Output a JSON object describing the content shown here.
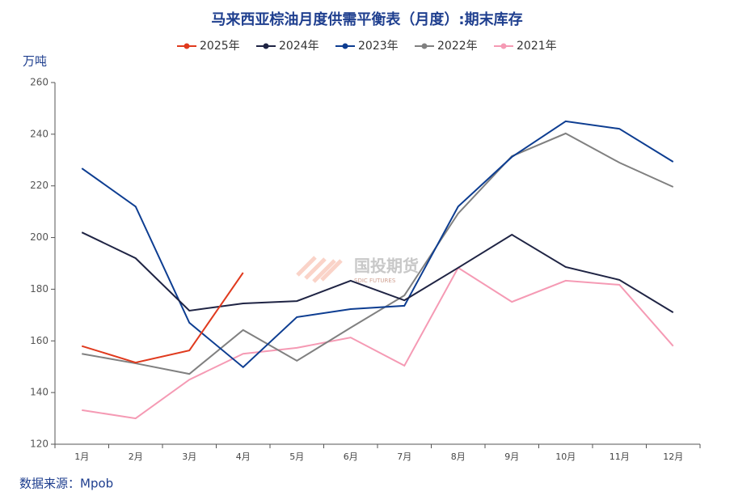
{
  "chart_data": {
    "type": "line",
    "title": "马来西亚棕油月度供需平衡表（月度）:期末库存",
    "y_axis_label": "万吨",
    "source": "数据来源：Mpob",
    "watermark": "国投期货",
    "watermark_sub": "SDIC FUTURES",
    "categories": [
      "1月",
      "2月",
      "3月",
      "4月",
      "5月",
      "6月",
      "7月",
      "8月",
      "9月",
      "10月",
      "11月",
      "12月"
    ],
    "series": [
      {
        "name": "2025年",
        "color": "#e03a1e",
        "values": [
          158,
          151.6,
          156.3,
          186.4,
          null,
          null,
          null,
          null,
          null,
          null,
          null,
          null
        ]
      },
      {
        "name": "2024年",
        "color": "#1f2444",
        "values": [
          202,
          192,
          171.7,
          174.5,
          175.4,
          183.3,
          175.7,
          188.3,
          201.1,
          188.6,
          183.6,
          171
        ]
      },
      {
        "name": "2023年",
        "color": "#0d3d91",
        "values": [
          226.8,
          212,
          167,
          149.8,
          169.2,
          172.3,
          173.6,
          212,
          231.2,
          245,
          242.1,
          229.3
        ]
      },
      {
        "name": "2022年",
        "color": "#808080",
        "values": [
          155,
          151.3,
          147.2,
          164.2,
          152.3,
          165.1,
          177.6,
          209.3,
          231.5,
          240.3,
          229,
          219.6
        ]
      },
      {
        "name": "2021年",
        "color": "#f59ab4",
        "values": [
          133.2,
          130,
          145,
          155,
          157.3,
          161.3,
          150.4,
          188.3,
          175.1,
          183.3,
          181.7,
          158
        ]
      }
    ],
    "ylim": [
      120,
      260
    ],
    "yticks": [
      120,
      140,
      160,
      180,
      200,
      220,
      240,
      260
    ],
    "grid": false
  }
}
